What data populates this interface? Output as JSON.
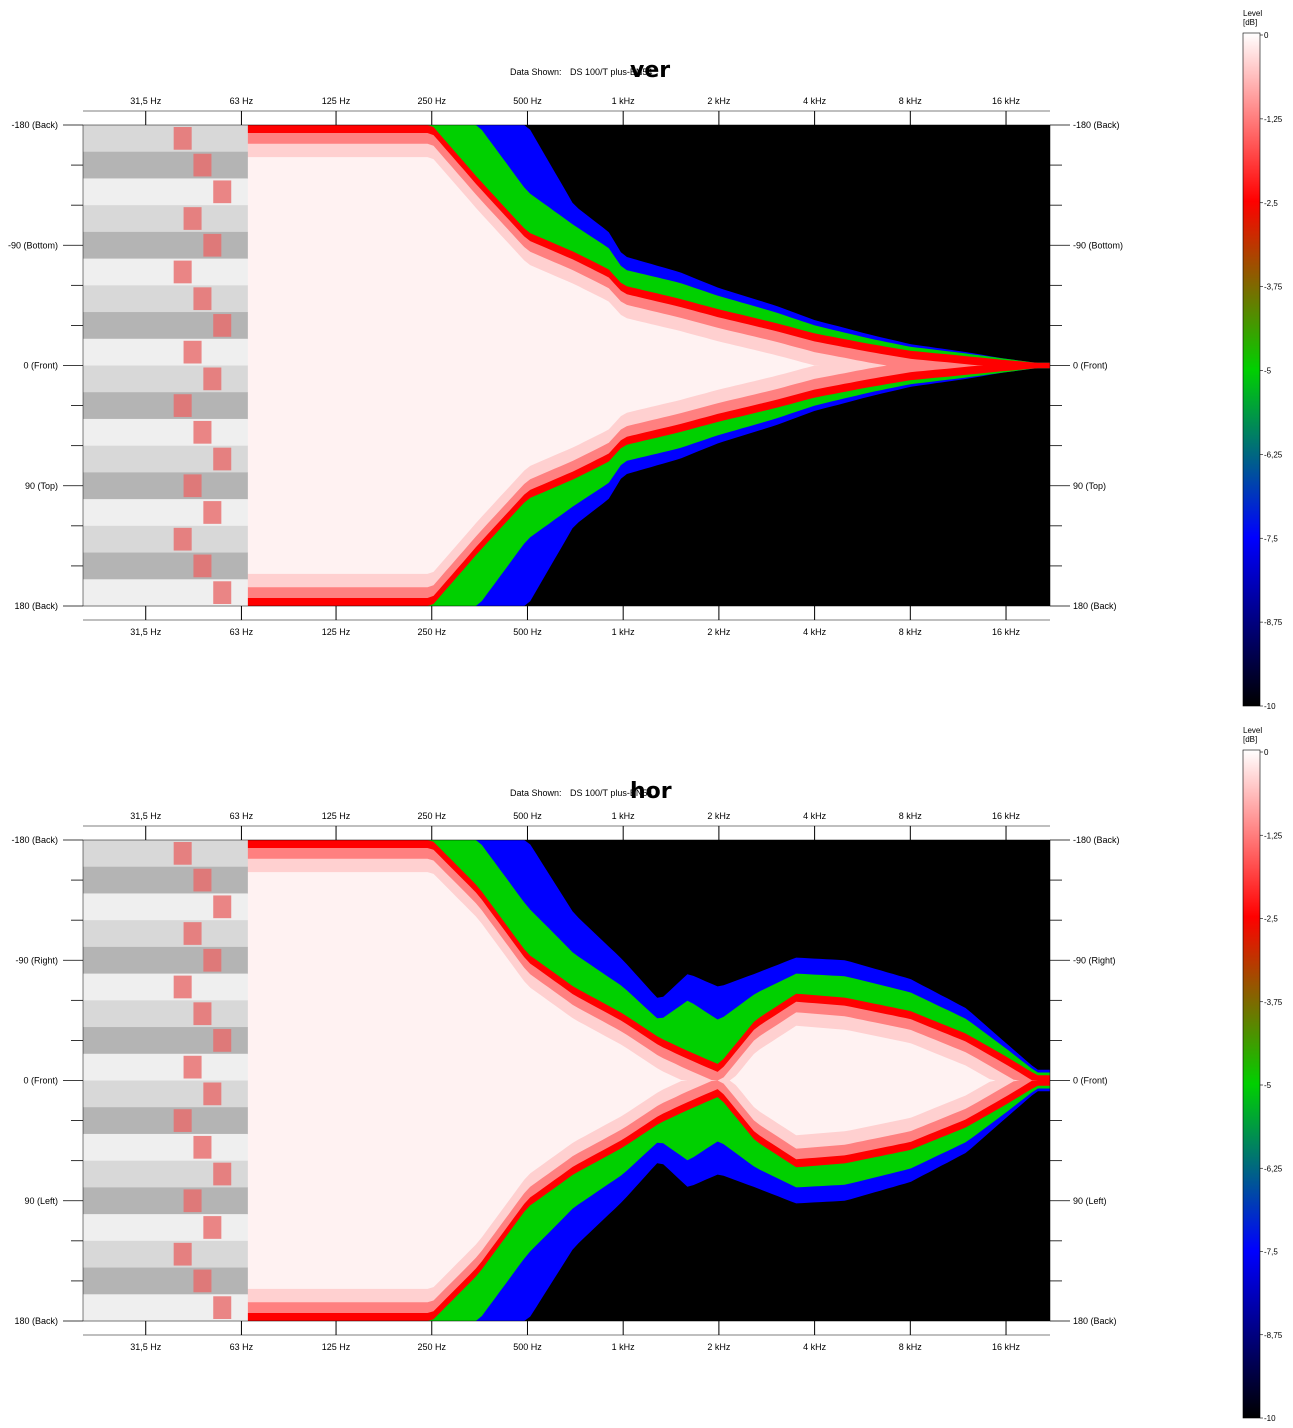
{
  "colors": {
    "background": "#ffffff",
    "plot_black": "#000000",
    "level_0": "#ffffff",
    "level_-2.5": "#ff0000",
    "level_-5": "#00d000",
    "level_-7.5": "#0000ff",
    "level_-10": "#000000",
    "filter_grey": "#b8b8b8"
  },
  "colorbar": {
    "title_line1": "Level",
    "title_line2": "[dB]",
    "ticks": [
      "0",
      "-1,25",
      "-2,5",
      "-3,75",
      "-5",
      "-6,25",
      "-7,5",
      "-8,75",
      "-10"
    ]
  },
  "chart_data": [
    {
      "type": "heatmap",
      "title_prefix": "Data Shown:",
      "title_item": "DS 100/T plus-EN54",
      "title_suffix": "ver",
      "x_ticks": [
        "31,5 Hz",
        "63 Hz",
        "125 Hz",
        "250 Hz",
        "500 Hz",
        "1 kHz",
        "2 kHz",
        "4 kHz",
        "8 kHz",
        "16 kHz"
      ],
      "x_tick_values_hz": [
        31.5,
        63,
        125,
        250,
        500,
        1000,
        2000,
        4000,
        8000,
        16000
      ],
      "x_range_hz": [
        20,
        22000
      ],
      "x_scale": "log",
      "y_ticks_left": [
        "-180 (Back)",
        "-90 (Bottom)",
        "0 (Front)",
        "90 (Top)",
        "180 (Back)"
      ],
      "y_ticks_right": [
        "-180 (Back)",
        "-90 (Bottom)",
        "0 (Front)",
        "90 (Top)",
        "180 (Back)"
      ],
      "y_tick_values_deg": [
        -180,
        -90,
        0,
        90,
        180
      ],
      "y_range_deg": [
        -180,
        180
      ],
      "z_range_db": [
        -10,
        0
      ],
      "z_unit": "dB",
      "contour_half_width_deg": {
        "freq_hz": [
          20,
          70,
          150,
          250,
          350,
          500,
          700,
          900,
          1000,
          1500,
          2000,
          3000,
          4000,
          6000,
          8000,
          12000,
          16000,
          20000
        ],
        "level_-2.5": [
          180,
          180,
          180,
          180,
          140,
          100,
          85,
          72,
          60,
          50,
          42,
          32,
          24,
          16,
          11,
          7,
          4,
          2
        ],
        "level_-5": [
          180,
          180,
          180,
          180,
          180,
          130,
          105,
          88,
          72,
          62,
          52,
          40,
          30,
          20,
          14,
          9,
          5,
          2
        ],
        "level_-7.5": [
          180,
          180,
          180,
          180,
          180,
          180,
          120,
          100,
          82,
          70,
          58,
          45,
          34,
          23,
          16,
          10,
          5,
          2
        ]
      }
    },
    {
      "type": "heatmap",
      "title_prefix": "Data Shown:",
      "title_item": "DS 100/T plus-EN54",
      "title_suffix": "hor",
      "x_ticks": [
        "31,5 Hz",
        "63 Hz",
        "125 Hz",
        "250 Hz",
        "500 Hz",
        "1 kHz",
        "2 kHz",
        "4 kHz",
        "8 kHz",
        "16 kHz"
      ],
      "x_tick_values_hz": [
        31.5,
        63,
        125,
        250,
        500,
        1000,
        2000,
        4000,
        8000,
        16000
      ],
      "x_range_hz": [
        20,
        22000
      ],
      "x_scale": "log",
      "y_ticks_left": [
        "-180 (Back)",
        "-90 (Right)",
        "0 (Front)",
        "90 (Left)",
        "180 (Back)"
      ],
      "y_ticks_right": [
        "-180 (Back)",
        "-90 (Right)",
        "0 (Front)",
        "90 (Left)",
        "180 (Back)"
      ],
      "y_tick_values_deg": [
        -180,
        -90,
        0,
        90,
        180
      ],
      "y_range_deg": [
        -180,
        180
      ],
      "z_range_db": [
        -10,
        0
      ],
      "z_unit": "dB",
      "contour_half_width_deg": {
        "freq_hz": [
          20,
          70,
          150,
          250,
          350,
          500,
          700,
          1000,
          1300,
          1600,
          2000,
          2600,
          3500,
          5000,
          8000,
          12000,
          16000,
          20000
        ],
        "level_-2.5": [
          180,
          180,
          180,
          180,
          145,
          95,
          70,
          50,
          32,
          22,
          12,
          45,
          65,
          62,
          52,
          35,
          18,
          4
        ],
        "level_-5": [
          180,
          180,
          180,
          180,
          180,
          130,
          95,
          70,
          45,
          60,
          45,
          65,
          80,
          78,
          66,
          46,
          24,
          6
        ],
        "level_-7.5": [
          180,
          180,
          180,
          180,
          180,
          180,
          125,
          90,
          60,
          80,
          70,
          80,
          92,
          90,
          76,
          54,
          28,
          8
        ]
      }
    }
  ]
}
